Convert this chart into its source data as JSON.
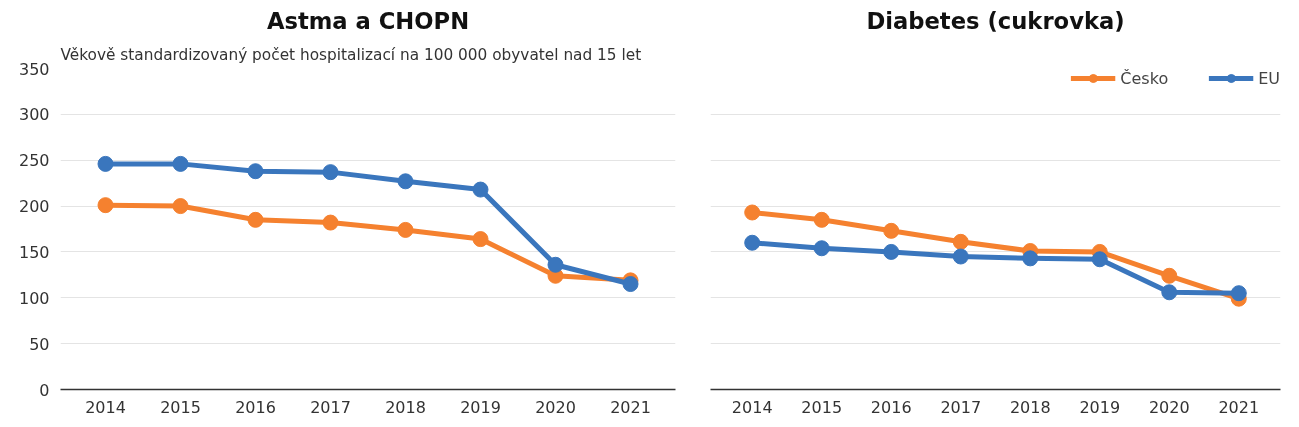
{
  "chart_data": [
    {
      "type": "line",
      "title": "Astma a CHOPN",
      "subtitle": "Věkově standardizovaný počet hospitalizací na 100 000 obyvatel nad 15 let",
      "categories": [
        "2014",
        "2015",
        "2016",
        "2017",
        "2018",
        "2019",
        "2020",
        "2021"
      ],
      "series": [
        {
          "color": "#f5812f",
          "values": [
            201,
            200,
            185,
            182,
            174,
            164,
            124,
            119
          ]
        },
        {
          "color": "#3a76bd",
          "values": [
            246,
            246,
            238,
            237,
            227,
            218,
            136,
            115
          ]
        }
      ],
      "ylim": [
        0,
        350
      ],
      "yticks": [
        0,
        50,
        100,
        150,
        200,
        250,
        300,
        350
      ],
      "grid": "y",
      "marker": "circle",
      "legend": false
    },
    {
      "type": "line",
      "title": "Diabetes (cukrovka)",
      "categories": [
        "2014",
        "2015",
        "2016",
        "2017",
        "2018",
        "2019",
        "2020",
        "2021"
      ],
      "series": [
        {
          "name": "Česko",
          "color": "#f5812f",
          "values": [
            193,
            185,
            173,
            161,
            151,
            150,
            124,
            99
          ]
        },
        {
          "name": "EU",
          "color": "#3a76bd",
          "values": [
            160,
            154,
            150,
            145,
            143,
            142,
            106,
            105
          ]
        }
      ],
      "ylim": [
        0,
        350
      ],
      "yticks": [
        0,
        50,
        100,
        150,
        200,
        250,
        300,
        350
      ],
      "grid": "y",
      "marker": "circle",
      "legend": "top right",
      "tick_labels": "x"
    }
  ]
}
